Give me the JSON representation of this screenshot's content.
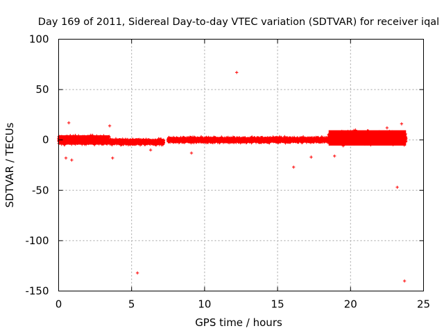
{
  "chart_data": {
    "type": "scatter",
    "title": "Day 169 of 2011, Sidereal Day-to-day VTEC variation (SDTVAR) for receiver iqal",
    "xlabel": "GPS time / hours",
    "ylabel": "SDTVAR / TECUs",
    "xlim": [
      0,
      25
    ],
    "ylim": [
      -150,
      100
    ],
    "xticks": [
      0,
      5,
      10,
      15,
      20,
      25
    ],
    "yticks": [
      -150,
      -100,
      -50,
      0,
      50,
      100
    ],
    "xtick_labels": [
      "0",
      "5",
      "10",
      "15",
      "20",
      "25"
    ],
    "ytick_labels": [
      "-150",
      "-100",
      "-50",
      "0",
      "50",
      "100"
    ],
    "grid": true,
    "legend": "none",
    "marker": "plus",
    "color": "#ff0000",
    "band_segments": [
      {
        "x_start": 0.0,
        "x_end": 3.5,
        "center": 0,
        "half_width": 6,
        "density": 0.004
      },
      {
        "x_start": 3.5,
        "x_end": 7.2,
        "center": -2,
        "half_width": 4,
        "density": 0.004
      },
      {
        "x_start": 7.5,
        "x_end": 18.5,
        "center": 0,
        "half_width": 4,
        "density": 0.004
      },
      {
        "x_start": 18.5,
        "x_end": 23.8,
        "center": 2,
        "half_width": 9,
        "density": 0.004
      }
    ],
    "outliers": [
      {
        "x": 0.7,
        "y": 17
      },
      {
        "x": 3.5,
        "y": 14
      },
      {
        "x": 5.4,
        "y": -132
      },
      {
        "x": 9.1,
        "y": -13
      },
      {
        "x": 12.2,
        "y": 67
      },
      {
        "x": 16.1,
        "y": -27
      },
      {
        "x": 17.3,
        "y": -17
      },
      {
        "x": 23.2,
        "y": -47
      },
      {
        "x": 23.7,
        "y": -140
      },
      {
        "x": 0.5,
        "y": -18
      },
      {
        "x": 0.9,
        "y": -20
      },
      {
        "x": 3.7,
        "y": -18
      },
      {
        "x": 6.3,
        "y": -10
      },
      {
        "x": 18.9,
        "y": -16
      },
      {
        "x": 22.5,
        "y": 12
      },
      {
        "x": 23.5,
        "y": 16
      }
    ]
  }
}
